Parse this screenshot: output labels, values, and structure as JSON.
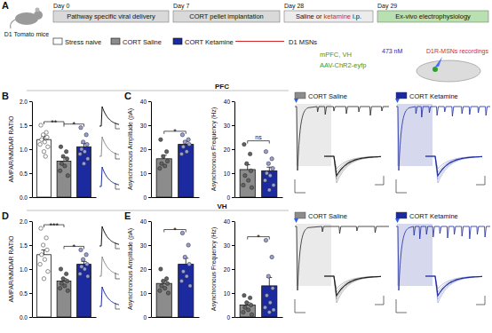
{
  "figure": {
    "panel_labels": [
      "A",
      "B",
      "C",
      "D",
      "E"
    ],
    "regions": [
      "PFC",
      "VH"
    ],
    "schematic": {
      "animal": "D1 Tomato mice",
      "days": [
        "Day 0",
        "Day 7",
        "Day 28",
        "Day 29"
      ],
      "steps": [
        "Pathway specific viral delivery",
        "CORT pellet implantation"
      ],
      "treatment": [
        "Saline or ",
        "ketamine",
        " i.p."
      ],
      "readout": "Ex-vivo electrophysiology",
      "groups": [
        {
          "label": "Stress naive",
          "color": "#ffffff"
        },
        {
          "label": "CORT Saline",
          "color": "#8c8c8c"
        },
        {
          "label": "CORT Ketamine",
          "color": "#1c2aa0"
        }
      ],
      "cell_type": "D1 MSNs",
      "targets": "mPFC, VH",
      "virus": "AAV-ChR2-eyfp",
      "light": "473 nM",
      "recording": "D1R-MSNs recordings"
    },
    "trace_legends": [
      {
        "label": "CORT Saline",
        "color": "#8c8c8c"
      },
      {
        "label": "CORT Ketamine",
        "color": "#1c2aa0"
      }
    ]
  },
  "chart_data": [
    {
      "type": "bar",
      "y_label": "AMPAR/NMDAR RATIO",
      "categories": [
        null,
        null,
        null
      ],
      "values": [
        1.2,
        0.75,
        1.05
      ],
      "errors": [
        0.07,
        0.08,
        0.07
      ],
      "points": [
        [
          1.5,
          1.35,
          1.3,
          1.25,
          1.2,
          1.15,
          1.1,
          1.05,
          0.95,
          0.85
        ],
        [
          1.05,
          0.95,
          0.85,
          0.8,
          0.7,
          0.65,
          0.55,
          0.45
        ],
        [
          1.45,
          1.3,
          1.15,
          1.1,
          1.0,
          0.95,
          0.9,
          0.8,
          0.7
        ]
      ],
      "colors": [
        "#ffffff",
        "#8c8c8c",
        "#1c2aa0"
      ],
      "ylim": [
        0,
        2
      ],
      "yticks": [
        {
          "value": 0,
          "label": "0.0"
        },
        {
          "value": 0.5,
          "label": "0.5"
        },
        {
          "value": 1,
          "label": "1.0"
        },
        {
          "value": 1.5,
          "label": "1.5"
        },
        {
          "value": 2,
          "label": "2.0"
        }
      ],
      "annotations": [
        {
          "text": "**",
          "from": 0,
          "to": 1
        },
        {
          "text": "*",
          "from": 1,
          "to": 2
        }
      ]
    },
    {
      "type": "bar",
      "y_label": "Asynchronous Amplitude (pA)",
      "categories": [
        null,
        null
      ],
      "values": [
        16,
        22
      ],
      "errors": [
        1.5,
        1.2
      ],
      "points": [
        [
          24,
          19,
          17,
          15,
          14,
          13,
          12
        ],
        [
          26,
          24,
          23,
          22,
          21,
          19,
          18
        ]
      ],
      "colors": [
        "#8c8c8c",
        "#1c2aa0"
      ],
      "ylim": [
        0,
        40
      ],
      "yticks": [
        0,
        10,
        20,
        30,
        40
      ],
      "annotations": [
        {
          "text": "*",
          "from": 0,
          "to": 1
        }
      ]
    },
    {
      "type": "bar",
      "y_label": "Asynchronous Frequency (Hz)",
      "categories": [
        null,
        null
      ],
      "values": [
        11.5,
        11
      ],
      "errors": [
        2,
        1.5
      ],
      "points": [
        [
          22,
          18,
          14,
          11,
          9,
          7,
          5,
          4
        ],
        [
          19,
          16,
          14,
          12,
          10,
          9,
          7,
          5,
          3
        ]
      ],
      "colors": [
        "#8c8c8c",
        "#1c2aa0"
      ],
      "ylim": [
        0,
        40
      ],
      "yticks": [
        0,
        10,
        20,
        30,
        40
      ],
      "annotations": [
        {
          "text": "ns",
          "from": 0,
          "to": 1
        }
      ]
    },
    {
      "type": "bar",
      "y_label": "AMPAR/NMDAR RATIO",
      "categories": [
        null,
        null,
        null
      ],
      "values": [
        1.3,
        0.75,
        1.1
      ],
      "errors": [
        0.1,
        0.05,
        0.06
      ],
      "points": [
        [
          1.85,
          1.65,
          1.5,
          1.4,
          1.3,
          1.2,
          1.1,
          0.95,
          0.8
        ],
        [
          1.0,
          0.9,
          0.8,
          0.75,
          0.7,
          0.65,
          0.6,
          0.55
        ],
        [
          1.4,
          1.3,
          1.2,
          1.1,
          1.05,
          1.0,
          0.9,
          0.85
        ]
      ],
      "colors": [
        "#ffffff",
        "#8c8c8c",
        "#1c2aa0"
      ],
      "ylim": [
        0,
        2
      ],
      "yticks": [
        {
          "value": 0,
          "label": "0.0"
        },
        {
          "value": 0.5,
          "label": "0.5"
        },
        {
          "value": 1,
          "label": "1.0"
        },
        {
          "value": 1.5,
          "label": "1.5"
        },
        {
          "value": 2,
          "label": "2.0"
        }
      ],
      "annotations": [
        {
          "text": "***",
          "from": 0,
          "to": 1
        },
        {
          "text": "*",
          "from": 1,
          "to": 2
        }
      ]
    },
    {
      "type": "bar",
      "y_label": "Asynchronous Amplitude (pA)",
      "categories": [
        null,
        null
      ],
      "values": [
        14,
        22
      ],
      "errors": [
        1,
        2.5
      ],
      "points": [
        [
          20,
          16,
          15,
          14,
          13,
          12,
          11,
          10
        ],
        [
          35,
          30,
          25,
          22,
          19,
          17,
          15,
          13
        ]
      ],
      "colors": [
        "#8c8c8c",
        "#1c2aa0"
      ],
      "ylim": [
        0,
        40
      ],
      "yticks": [
        0,
        10,
        20,
        30,
        40
      ],
      "annotations": [
        {
          "text": "*",
          "from": 0,
          "to": 1
        }
      ]
    },
    {
      "type": "bar",
      "y_label": "Asynchronous Frequency (Hz)",
      "categories": [
        null,
        null
      ],
      "values": [
        5,
        13
      ],
      "errors": [
        1,
        3.5
      ],
      "points": [
        [
          9,
          8,
          6,
          5,
          4,
          3,
          2,
          1
        ],
        [
          32,
          25,
          17,
          12,
          9,
          6,
          4,
          3,
          2
        ]
      ],
      "colors": [
        "#8c8c8c",
        "#1c2aa0"
      ],
      "ylim": [
        0,
        40
      ],
      "yticks": [
        0,
        10,
        20,
        30,
        40
      ],
      "annotations": [
        {
          "text": "*",
          "from": 0,
          "to": 1
        }
      ]
    }
  ]
}
